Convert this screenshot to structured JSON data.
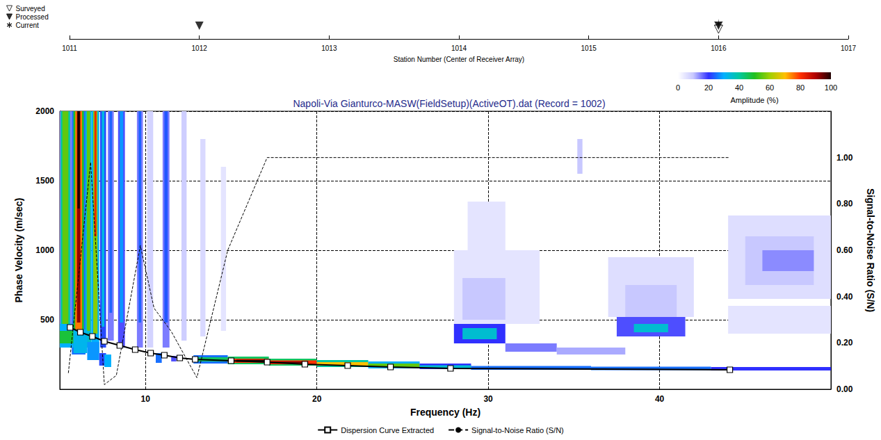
{
  "chart_data": [
    {
      "type": "scatter",
      "xlabel": "Station Number (Center of Receiver Array)",
      "xlim": [
        1011,
        1017
      ],
      "xticks": [
        1011,
        1012,
        1013,
        1014,
        1015,
        1016,
        1017
      ],
      "legend": "upper left",
      "series": [
        {
          "name": "Surveyed",
          "marker": "triangle_down_open",
          "color": "#000000",
          "x": [
            1016
          ]
        },
        {
          "name": "Processed",
          "marker": "triangle_down",
          "color": "#000000",
          "x": [
            1012,
            1016
          ]
        },
        {
          "name": "Current",
          "marker": "asterisk",
          "color": "#000000",
          "x": [
            1016
          ]
        }
      ]
    },
    {
      "type": "heatmap",
      "title": "Napoli-Via Gianturco-MASW(FieldSetup)(ActiveOT).dat (Record = 1002)",
      "xlabel": "Frequency (Hz)",
      "ylabel": "Phase Velocity (m/sec)",
      "y2label": "Signal-to-Noise Ratio (S/N)",
      "xlim": [
        5,
        50
      ],
      "xticks": [
        10,
        20,
        30,
        40
      ],
      "ylim": [
        0,
        2000
      ],
      "yticks": [
        500,
        1000,
        1500,
        2000
      ],
      "y2lim": [
        0,
        1.2
      ],
      "y2ticks": [
        {
          "value": 0,
          "label": "0.00"
        },
        {
          "value": 0.2,
          "label": "0.20"
        },
        {
          "value": 0.4,
          "label": "0.40"
        },
        {
          "value": 0.6,
          "label": "0.60"
        },
        {
          "value": 0.8,
          "label": "0.80"
        },
        {
          "value": 1,
          "label": "1.00"
        }
      ],
      "grid": true,
      "legend": "bottom",
      "colorbar": {
        "label": "Amplitude (%)",
        "range": [
          0,
          100
        ],
        "ticks": [
          0,
          20,
          40,
          60,
          80,
          100
        ],
        "colors": [
          "#ffffff",
          "#c8c8ff",
          "#3030ff",
          "#00b0ff",
          "#00c8a0",
          "#20c020",
          "#a0d000",
          "#ffc000",
          "#ff3000",
          "#b00000",
          "#200000"
        ]
      },
      "cells": [
        [
          5.0,
          5.7,
          300,
          2000,
          15
        ],
        [
          5.05,
          5.6,
          350,
          2000,
          40
        ],
        [
          5.15,
          5.5,
          420,
          2000,
          55
        ],
        [
          5.7,
          6.5,
          250,
          2000,
          25
        ],
        [
          5.8,
          6.4,
          320,
          2000,
          50
        ],
        [
          5.9,
          6.3,
          400,
          2000,
          75
        ],
        [
          6.0,
          6.2,
          480,
          2000,
          92
        ],
        [
          6.03,
          6.17,
          1300,
          2000,
          100
        ],
        [
          6.5,
          6.85,
          300,
          2000,
          35
        ],
        [
          6.58,
          6.77,
          420,
          2000,
          55
        ],
        [
          6.85,
          7.3,
          260,
          2000,
          30
        ],
        [
          6.95,
          7.2,
          400,
          2000,
          58
        ],
        [
          7.02,
          7.14,
          1100,
          2000,
          82
        ],
        [
          7.35,
          7.7,
          300,
          2000,
          22
        ],
        [
          7.45,
          7.6,
          450,
          2000,
          33
        ],
        [
          7.8,
          8.15,
          350,
          2000,
          15
        ],
        [
          7.9,
          8.05,
          550,
          2000,
          24
        ],
        [
          8.4,
          8.8,
          300,
          2000,
          18
        ],
        [
          8.5,
          8.7,
          480,
          2000,
          28
        ],
        [
          9.5,
          9.85,
          300,
          2000,
          15
        ],
        [
          9.6,
          9.75,
          480,
          2000,
          24
        ],
        [
          10.1,
          10.45,
          300,
          2000,
          8
        ],
        [
          11.0,
          11.4,
          300,
          2000,
          15
        ],
        [
          11.1,
          11.3,
          480,
          2000,
          23
        ],
        [
          12.1,
          12.4,
          350,
          2000,
          9
        ],
        [
          13.2,
          13.5,
          380,
          1800,
          7
        ],
        [
          14.4,
          14.7,
          420,
          1600,
          5
        ],
        [
          5.0,
          5.8,
          300,
          470,
          30
        ],
        [
          5.0,
          5.8,
          330,
          420,
          48
        ],
        [
          5.8,
          6.6,
          260,
          430,
          32
        ],
        [
          6.6,
          7.3,
          210,
          340,
          28
        ],
        [
          7.3,
          7.7,
          170,
          260,
          22
        ],
        [
          7.6,
          8.0,
          160,
          250,
          30
        ],
        [
          10.6,
          10.95,
          190,
          260,
          25
        ],
        [
          11.5,
          11.8,
          200,
          240,
          18
        ],
        [
          12.8,
          14.8,
          185,
          245,
          25
        ],
        [
          12.8,
          14.8,
          200,
          230,
          45
        ],
        [
          14.8,
          17.2,
          180,
          235,
          45
        ],
        [
          14.8,
          17.2,
          190,
          220,
          80
        ],
        [
          15.3,
          17.2,
          198,
          212,
          100
        ],
        [
          17.2,
          20,
          170,
          220,
          45
        ],
        [
          17.2,
          20,
          180,
          208,
          80
        ],
        [
          17.2,
          19.5,
          188,
          200,
          95
        ],
        [
          20,
          23,
          160,
          210,
          40
        ],
        [
          20,
          23,
          170,
          195,
          70
        ],
        [
          23,
          26,
          150,
          200,
          30
        ],
        [
          23,
          26,
          160,
          185,
          55
        ],
        [
          26,
          29,
          145,
          185,
          20
        ],
        [
          26,
          29,
          152,
          172,
          35
        ],
        [
          29,
          36,
          140,
          168,
          25
        ],
        [
          36,
          43,
          138,
          162,
          25
        ],
        [
          43,
          50,
          135,
          160,
          20
        ],
        [
          28,
          33,
          470,
          1000,
          5
        ],
        [
          28.8,
          31,
          800,
          1350,
          5
        ],
        [
          28.5,
          31,
          500,
          800,
          10
        ],
        [
          28,
          31,
          330,
          470,
          20
        ],
        [
          28.5,
          30.5,
          360,
          440,
          35
        ],
        [
          31,
          34,
          270,
          330,
          15
        ],
        [
          34,
          38,
          250,
          300,
          12
        ],
        [
          37,
          42,
          520,
          950,
          6
        ],
        [
          38,
          41,
          520,
          750,
          10
        ],
        [
          37.5,
          41.5,
          380,
          520,
          18
        ],
        [
          38.5,
          40.5,
          410,
          470,
          35
        ],
        [
          44,
          50,
          650,
          1250,
          6
        ],
        [
          45,
          49,
          750,
          1100,
          10
        ],
        [
          46,
          49,
          850,
          1000,
          14
        ],
        [
          44,
          50,
          400,
          600,
          5
        ],
        [
          35.2,
          35.5,
          1550,
          1800,
          10
        ]
      ],
      "series": [
        {
          "name": "Dispersion Curve Extracted",
          "type": "line",
          "marker": "square",
          "line_style": "solid",
          "color": "#000000",
          "x": [
            5.6,
            6.2,
            6.9,
            7.6,
            8.5,
            9.4,
            10.3,
            11.1,
            12.0,
            12.9,
            15.0,
            17.1,
            19.3,
            21.8,
            24.3,
            27.8,
            44.1
          ],
          "values": [
            445,
            410,
            380,
            345,
            315,
            285,
            260,
            245,
            225,
            215,
            205,
            195,
            180,
            170,
            160,
            150,
            140
          ]
        },
        {
          "name": "Signal-to-Noise Ratio (S/N)",
          "type": "line",
          "line_style": "dashed",
          "color": "#000000",
          "axis": "y2",
          "x": [
            5.5,
            6.8,
            7.6,
            8.3,
            9.7,
            10.5,
            11.5,
            13.0,
            14.8,
            17.1,
            44.1
          ],
          "values": [
            0.07,
            0.98,
            0.02,
            0.06,
            0.62,
            0.35,
            0.25,
            0.05,
            0.6,
            1.0,
            1.0
          ]
        }
      ]
    }
  ]
}
